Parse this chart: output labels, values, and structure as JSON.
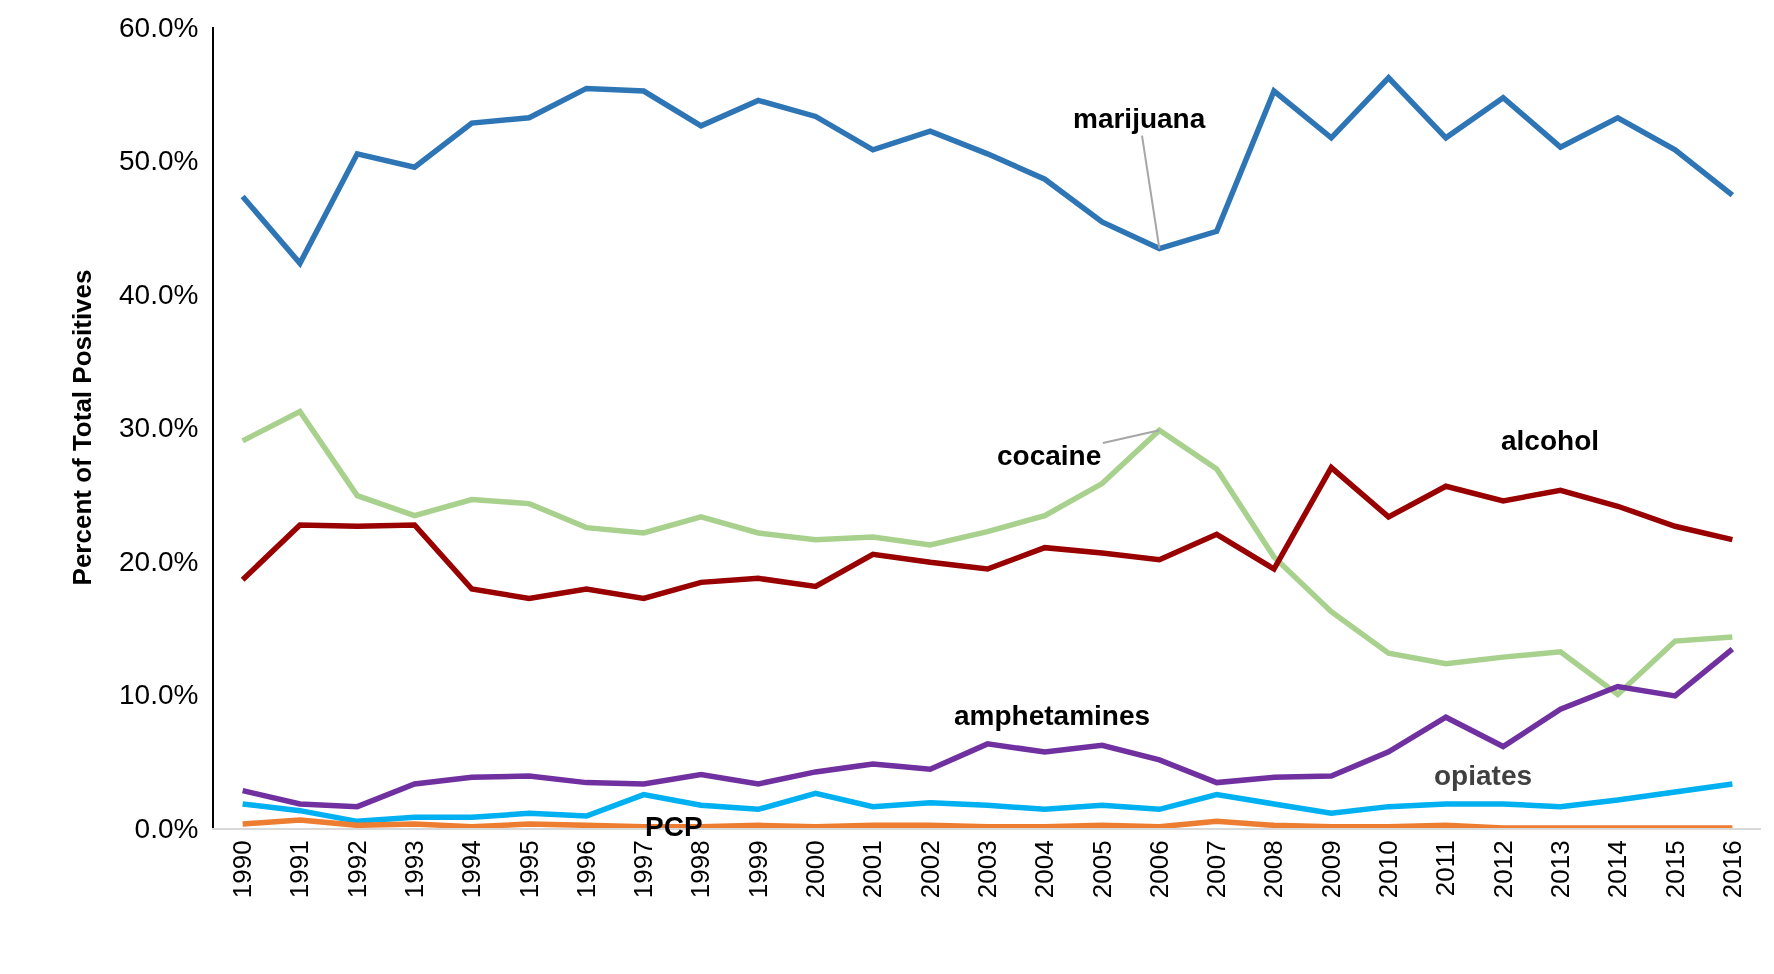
{
  "chart_data": {
    "type": "line",
    "ylabel": "Percent of Total Positives",
    "categories": [
      "1990",
      "1991",
      "1992",
      "1993",
      "1994",
      "1995",
      "1996",
      "1997",
      "1998",
      "1999",
      "2000",
      "2001",
      "2002",
      "2003",
      "2004",
      "2005",
      "2006",
      "2007",
      "2008",
      "2009",
      "2010",
      "2011",
      "2012",
      "2013",
      "2014",
      "2015",
      "2016"
    ],
    "series": [
      {
        "name": "marijuana",
        "color": "#2e75b6",
        "values": [
          47.3,
          42.3,
          50.5,
          49.5,
          52.8,
          53.2,
          55.4,
          55.2,
          52.6,
          54.5,
          53.3,
          50.8,
          52.2,
          50.5,
          48.6,
          45.4,
          43.4,
          44.7,
          55.2,
          51.7,
          56.2,
          51.7,
          54.7,
          51.0,
          53.2,
          50.8,
          47.4
        ]
      },
      {
        "name": "cocaine",
        "color": "#a9d18e",
        "values": [
          29.0,
          31.2,
          24.9,
          23.4,
          24.6,
          24.3,
          22.5,
          22.1,
          23.3,
          22.1,
          21.6,
          21.8,
          21.2,
          22.2,
          23.4,
          25.8,
          29.8,
          26.9,
          20.3,
          16.2,
          13.1,
          12.3,
          12.8,
          13.2,
          10.0,
          14.0,
          14.3
        ]
      },
      {
        "name": "alcohol",
        "color": "#990000",
        "values": [
          18.6,
          22.7,
          22.6,
          22.7,
          17.9,
          17.2,
          17.9,
          17.2,
          18.4,
          18.7,
          18.1,
          20.5,
          19.9,
          19.4,
          21.0,
          20.6,
          20.1,
          22.0,
          19.4,
          27.0,
          23.3,
          25.6,
          24.5,
          25.3,
          24.1,
          22.6,
          21.6
        ]
      },
      {
        "name": "amphetamines",
        "color": "#7030a0",
        "values": [
          2.8,
          1.8,
          1.6,
          3.3,
          3.8,
          3.9,
          3.4,
          3.3,
          4.0,
          3.3,
          4.2,
          4.8,
          4.4,
          6.3,
          5.7,
          6.2,
          5.1,
          3.4,
          3.8,
          3.9,
          5.7,
          8.3,
          6.1,
          8.9,
          10.6,
          9.9,
          13.4
        ]
      },
      {
        "name": "opiates",
        "color": "#00b0f0",
        "values": [
          1.8,
          1.3,
          0.5,
          0.8,
          0.8,
          1.1,
          0.9,
          2.5,
          1.7,
          1.4,
          2.6,
          1.6,
          1.9,
          1.7,
          1.4,
          1.7,
          1.4,
          2.5,
          1.8,
          1.1,
          1.6,
          1.8,
          1.8,
          1.6,
          2.1,
          2.7,
          3.3
        ]
      },
      {
        "name": "PCP",
        "color": "#ed7d31",
        "values": [
          0.3,
          0.6,
          0.2,
          0.3,
          0.1,
          0.3,
          0.2,
          0.1,
          0.1,
          0.2,
          0.1,
          0.2,
          0.2,
          0.1,
          0.1,
          0.2,
          0.1,
          0.5,
          0.2,
          0.1,
          0.1,
          0.2,
          0.0,
          0.0,
          0.0,
          0.0,
          0.0
        ]
      }
    ],
    "ylim": [
      0,
      60
    ],
    "yticks": [
      {
        "value": 0,
        "label": "0.0%"
      },
      {
        "value": 10,
        "label": "10.0%"
      },
      {
        "value": 20,
        "label": "20.0%"
      },
      {
        "value": 30,
        "label": "30.0%"
      },
      {
        "value": 40,
        "label": "40.0%"
      },
      {
        "value": 50,
        "label": "50.0%"
      },
      {
        "value": 60,
        "label": "60.0%"
      }
    ],
    "grid": false,
    "legend": false,
    "marker": "none",
    "line_style": "solid"
  }
}
